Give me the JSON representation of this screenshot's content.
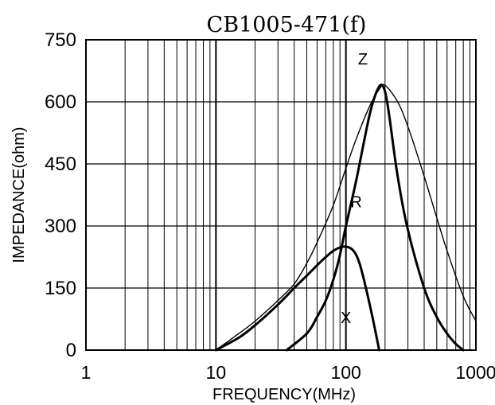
{
  "chart_data": {
    "type": "line",
    "title": "CB1005-471(f)",
    "xlabel": "FREQUENCY(MHz)",
    "ylabel": "IMPEDANCE(ohm)",
    "xscale": "log",
    "xlim": [
      1,
      1000
    ],
    "ylim": [
      0,
      750
    ],
    "xticks": [
      "1",
      "10",
      "100",
      "1000"
    ],
    "yticks": [
      "0",
      "150",
      "300",
      "450",
      "600",
      "750"
    ],
    "grid": true,
    "series": [
      {
        "name": "Z",
        "x": [
          10,
          15,
          20,
          30,
          40,
          50,
          60,
          80,
          100,
          120,
          150,
          180,
          200,
          250,
          300,
          400,
          500,
          600,
          800,
          1000
        ],
        "y": [
          0,
          40,
          70,
          120,
          160,
          210,
          260,
          350,
          440,
          510,
          585,
          630,
          640,
          600,
          540,
          420,
          320,
          240,
          130,
          70
        ]
      },
      {
        "name": "R",
        "x": [
          35,
          50,
          60,
          70,
          80,
          90,
          100,
          120,
          150,
          170,
          190,
          210,
          250,
          300,
          400,
          500,
          600,
          700,
          800
        ],
        "y": [
          0,
          40,
          80,
          120,
          170,
          230,
          300,
          410,
          560,
          620,
          640,
          590,
          420,
          290,
          150,
          80,
          40,
          15,
          0
        ]
      },
      {
        "name": "X",
        "x": [
          10,
          15,
          20,
          30,
          40,
          50,
          60,
          70,
          80,
          90,
          100,
          110,
          120,
          130,
          150,
          170,
          180
        ],
        "y": [
          0,
          30,
          60,
          110,
          150,
          180,
          205,
          225,
          240,
          248,
          250,
          245,
          230,
          200,
          120,
          40,
          0
        ]
      }
    ]
  }
}
